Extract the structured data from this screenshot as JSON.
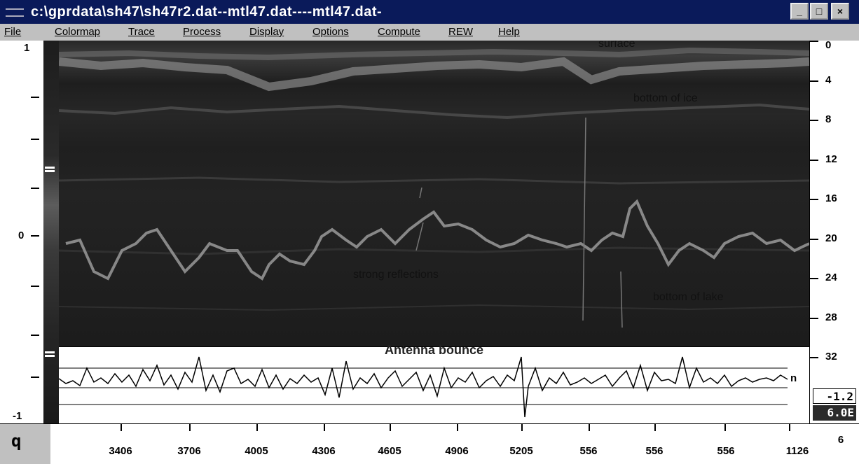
{
  "window": {
    "title": "c:\\gprdata\\sh47\\sh47r2.dat--mtl47.dat----mtl47.dat-",
    "controls": [
      "minimize",
      "maximize",
      "close"
    ]
  },
  "menu": [
    "File",
    "Colormap",
    "Trace",
    "Process",
    "Display",
    "Options",
    "Compute",
    "REW",
    "Help"
  ],
  "colorbar": {
    "top_label": "1",
    "mid_label": "0",
    "bottom_label": "-1"
  },
  "annotations": {
    "surface": "surface",
    "bottom_of_ice": "bottom of ice",
    "strong_reflections": "strong reflections",
    "bottom_of_lake": "bottom of lake"
  },
  "trace_panel": {
    "title": "Antenna bounce",
    "level_label": "n"
  },
  "right_axis": {
    "ticks": [
      "0",
      "4",
      "8",
      "12",
      "16",
      "20",
      "24",
      "28",
      "32"
    ]
  },
  "readouts": {
    "value1": "-1.2",
    "value2": "6.0E"
  },
  "bottom_axis": {
    "corner_label": "q",
    "ticks": [
      "3406",
      "3706",
      "4005",
      "4306",
      "4605",
      "4906",
      "5205",
      "556",
      "556",
      "556",
      "1126"
    ],
    "end_label": "6"
  }
}
